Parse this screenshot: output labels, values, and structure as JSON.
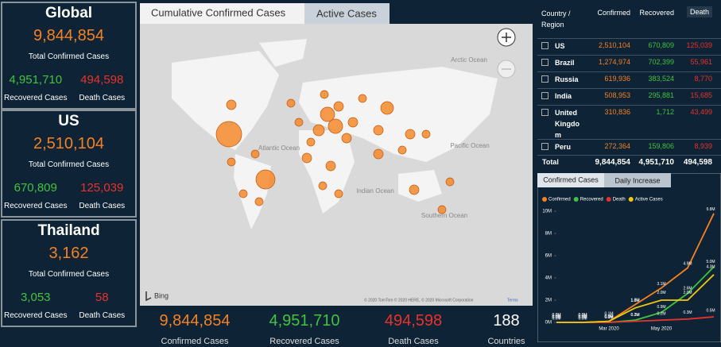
{
  "left_panels": [
    {
      "title": "Global",
      "confirmed": "9,844,854",
      "confirmed_label": "Total Confirmed Cases",
      "recovered": "4,951,710",
      "recovered_label": "Recovered Cases",
      "death": "494,598",
      "death_label": "Death Cases"
    },
    {
      "title": "US",
      "confirmed": "2,510,104",
      "confirmed_label": "Total Confirmed Cases",
      "recovered": "670,809",
      "recovered_label": "Recovered Cases",
      "death": "125,039",
      "death_label": "Death Cases"
    },
    {
      "title": "Thailand",
      "confirmed": "3,162",
      "confirmed_label": "Total Confirmed Cases",
      "recovered": "3,053",
      "recovered_label": "Recovered Cases",
      "death": "58",
      "death_label": "Death Cases"
    }
  ],
  "map": {
    "tabs": [
      "Cumulative Confirmed Cases",
      "Active Cases"
    ],
    "ocean_labels": [
      "Arctic Ocean",
      "Atlantic Ocean",
      "Pacific Ocean",
      "Indian Ocean",
      "Southern Ocean"
    ],
    "attribution": "© 2020 TomTom © 2020 HERE, © 2020 Microsoft Corporation",
    "terms": "Terms",
    "logo": "Bing"
  },
  "totals": [
    {
      "value": "9,844,854",
      "label": "Confirmed Cases"
    },
    {
      "value": "4,951,710",
      "label": "Recovered Cases"
    },
    {
      "value": "494,598",
      "label": "Death Cases"
    },
    {
      "value": "188",
      "label": "Countries"
    }
  ],
  "table": {
    "headers": [
      "Country / Region",
      "Confirmed",
      "Recovered",
      "Death"
    ],
    "rows": [
      [
        "US",
        "2,510,104",
        "670,809",
        "125,039"
      ],
      [
        "Brazil",
        "1,274,974",
        "702,399",
        "55,961"
      ],
      [
        "Russia",
        "619,936",
        "383,524",
        "8,770"
      ],
      [
        "India",
        "508,953",
        "295,881",
        "15,685"
      ],
      [
        "United Kingdom",
        "310,836",
        "1,712",
        "43,499"
      ],
      [
        "Peru",
        "272,364",
        "159,806",
        "8,939"
      ]
    ],
    "total": [
      "Total",
      "9,844,854",
      "4,951,710",
      "494,598"
    ]
  },
  "chart_tabs": [
    "Confirmed Cases",
    "Daily Increase"
  ],
  "chart_data": {
    "type": "line",
    "categories": [
      null,
      null,
      "Mar 2020",
      null,
      "May 2020",
      null,
      null
    ],
    "series": [
      {
        "name": "Confirmed",
        "color": "#f58220",
        "values": [
          0.0,
          0.0,
          0.1,
          1.6,
          3.1,
          4.9,
          9.8
        ],
        "value_labels": [
          "0.0M",
          "0.0M",
          "0.1M",
          "1.6M",
          "3.1M",
          "4.9M",
          "9.8M"
        ]
      },
      {
        "name": "Recovered",
        "color": "#3ec43e",
        "values": [
          0.0,
          0.0,
          0.0,
          0.2,
          0.9,
          2.6,
          5.0
        ],
        "value_labels": [
          "0.0M",
          "0.0M",
          "0.0M",
          "0.2M",
          "0.9M",
          "2.6M",
          "5.0M"
        ]
      },
      {
        "name": "Death",
        "color": "#e8322b",
        "values": [
          0.0,
          0.0,
          0.0,
          0.1,
          0.2,
          0.3,
          0.5
        ],
        "value_labels": [
          "0.0M",
          "0.0M",
          "0.0M",
          "0.1M",
          "0.2M",
          "0.3M",
          "0.5M"
        ]
      },
      {
        "name": "Active Cases",
        "color": "#f2c80f",
        "values": [
          0.0,
          0.0,
          0.1,
          1.3,
          2.0,
          2.0,
          4.3
        ],
        "value_labels": [
          "0.0M",
          "0.0M",
          "0.1M",
          "1.3M",
          "2.0M",
          "2.0M",
          "4.3M"
        ]
      }
    ],
    "ylim": [
      0,
      10
    ],
    "yticks": [
      {
        "value": 0,
        "label": "0M"
      },
      {
        "value": 2,
        "label": "2M"
      },
      {
        "value": 4,
        "label": "4M"
      },
      {
        "value": 6,
        "label": "6M"
      },
      {
        "value": 8,
        "label": "8M"
      },
      {
        "value": 10,
        "label": "10M"
      }
    ]
  }
}
